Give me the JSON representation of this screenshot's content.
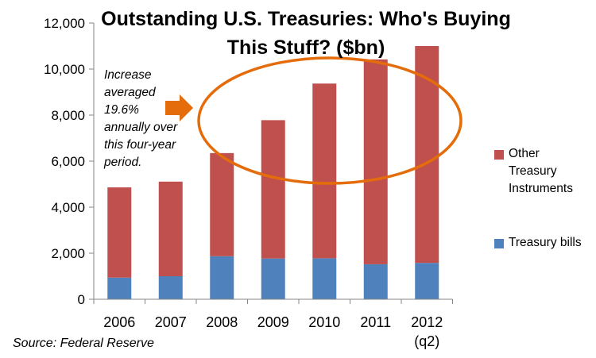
{
  "chart_data": {
    "type": "bar",
    "stacked": true,
    "title": "Outstanding U.S. Treasuries: Who's Buying This Stuff? ($bn)",
    "title_lines": [
      "Outstanding U.S. Treasuries: Who's Buying",
      "This Stuff? ($bn)"
    ],
    "categories": [
      "2006",
      "2007",
      "2008",
      "2009",
      "2010",
      "2011",
      "2012"
    ],
    "category_sublabels": [
      "",
      "",
      "",
      "",
      "",
      "",
      "(q2)"
    ],
    "series": [
      {
        "name": "Treasury bills",
        "color": "#4f81bd",
        "values": [
          940,
          1000,
          1870,
          1770,
          1780,
          1520,
          1580
        ]
      },
      {
        "name": "Other Treasury Instruments",
        "color": "#c0504d",
        "values": [
          3920,
          4110,
          4480,
          6010,
          7590,
          8900,
          9420
        ]
      }
    ],
    "legend": [
      {
        "series": "Other Treasury Instruments",
        "lines": [
          "Other",
          "Treasury",
          "Instruments"
        ],
        "color": "#c0504d"
      },
      {
        "series": "Treasury bills",
        "lines": [
          "Treasury bills"
        ],
        "color": "#4f81bd"
      }
    ],
    "legend_position": "right",
    "ylim": [
      0,
      12000
    ],
    "yticks": [
      0,
      2000,
      4000,
      6000,
      8000,
      10000,
      12000
    ],
    "ytick_labels": [
      "0",
      "2,000",
      "4,000",
      "6,000",
      "8,000",
      "10,000",
      "12,000"
    ],
    "xlabel": "",
    "ylabel": "",
    "grid": false,
    "annotation": {
      "lines": [
        "Increase",
        "averaged",
        "19.6%",
        "annually over",
        "this four-year",
        "period."
      ],
      "arrow_color": "#e46c0a",
      "ellipse_color": "#e46c0a",
      "highlighted_categories": [
        "2008",
        "2009",
        "2010",
        "2011"
      ]
    },
    "source": "Source: Federal Reserve"
  }
}
